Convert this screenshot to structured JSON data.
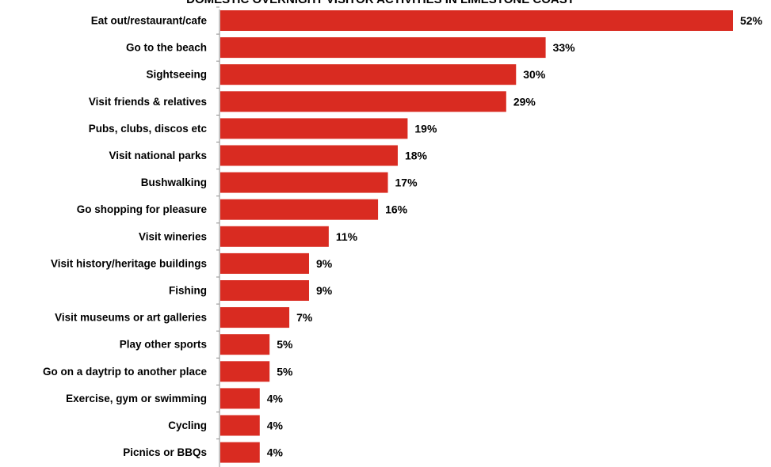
{
  "chart_data": {
    "type": "bar",
    "orientation": "horizontal",
    "title": "DOMESTIC OVERNIGHT VISITOR ACTIVITIES IN LIMESTONE COAST",
    "categories": [
      "Eat out/restaurant/cafe",
      "Go to the beach",
      "Sightseeing",
      "Visit friends & relatives",
      "Pubs, clubs, discos etc",
      "Visit national parks",
      "Bushwalking",
      "Go shopping for pleasure",
      "Visit wineries",
      "Visit history/heritage buildings",
      "Fishing",
      "Visit museums or art galleries",
      "Play other sports",
      "Go on a daytrip to another place",
      "Exercise, gym or swimming",
      "Cycling",
      "Picnics or BBQs"
    ],
    "values": [
      52,
      33,
      30,
      29,
      19,
      18,
      17,
      16,
      11,
      9,
      9,
      7,
      5,
      5,
      4,
      4,
      4
    ],
    "value_labels": [
      "52%",
      "33%",
      "30%",
      "29%",
      "19%",
      "18%",
      "17%",
      "16%",
      "11%",
      "9%",
      "9%",
      "7%",
      "5%",
      "5%",
      "4%",
      "4%",
      "4%"
    ],
    "xlim": [
      0,
      52
    ],
    "grid": false,
    "legend": "none",
    "bar_color": "#d92b21"
  }
}
